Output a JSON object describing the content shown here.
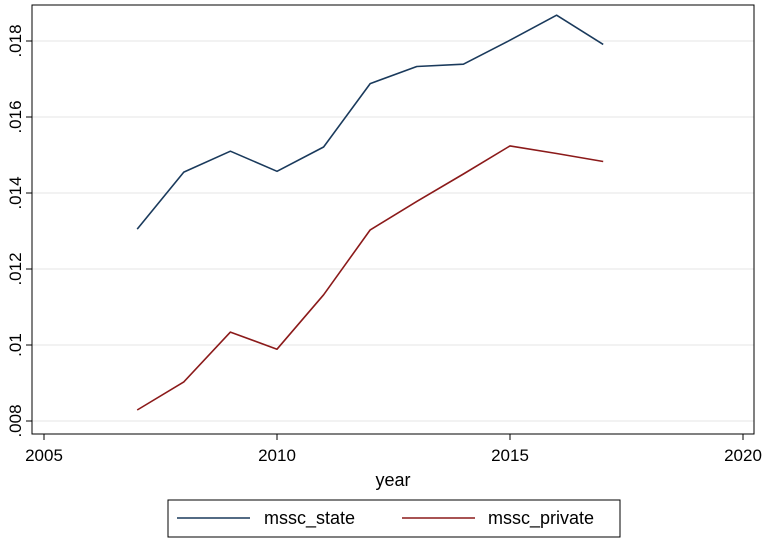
{
  "chart_data": {
    "type": "line",
    "title": "",
    "xlabel": "year",
    "ylabel": "",
    "xlim": [
      2005,
      2020
    ],
    "ylim": [
      0.008,
      0.019
    ],
    "xticks": [
      2005,
      2010,
      2015,
      2020
    ],
    "xtick_labels": [
      "2005",
      "2010",
      "2015",
      "2020"
    ],
    "yticks": [
      0.008,
      0.01,
      0.012,
      0.014,
      0.016,
      0.018
    ],
    "ytick_labels": [
      ".008",
      ".01",
      ".012",
      ".014",
      ".016",
      ".018"
    ],
    "grid": true,
    "legend": "bottom",
    "x": [
      2007,
      2008,
      2009,
      2010,
      2011,
      2012,
      2013,
      2014,
      2015,
      2016,
      2017
    ],
    "series": [
      {
        "name": "mssc_state",
        "color": "#1a3a5c",
        "values": [
          0.01305,
          0.01455,
          0.0151,
          0.01457,
          0.01521,
          0.01688,
          0.01733,
          0.01739,
          0.01802,
          0.01868,
          0.01791
        ]
      },
      {
        "name": "mssc_private",
        "color": "#8b1a1a",
        "values": [
          0.00829,
          0.00903,
          0.01034,
          0.00989,
          0.01132,
          0.01303,
          0.01378,
          0.0145,
          0.01524,
          0.01504,
          0.01483
        ]
      }
    ]
  }
}
